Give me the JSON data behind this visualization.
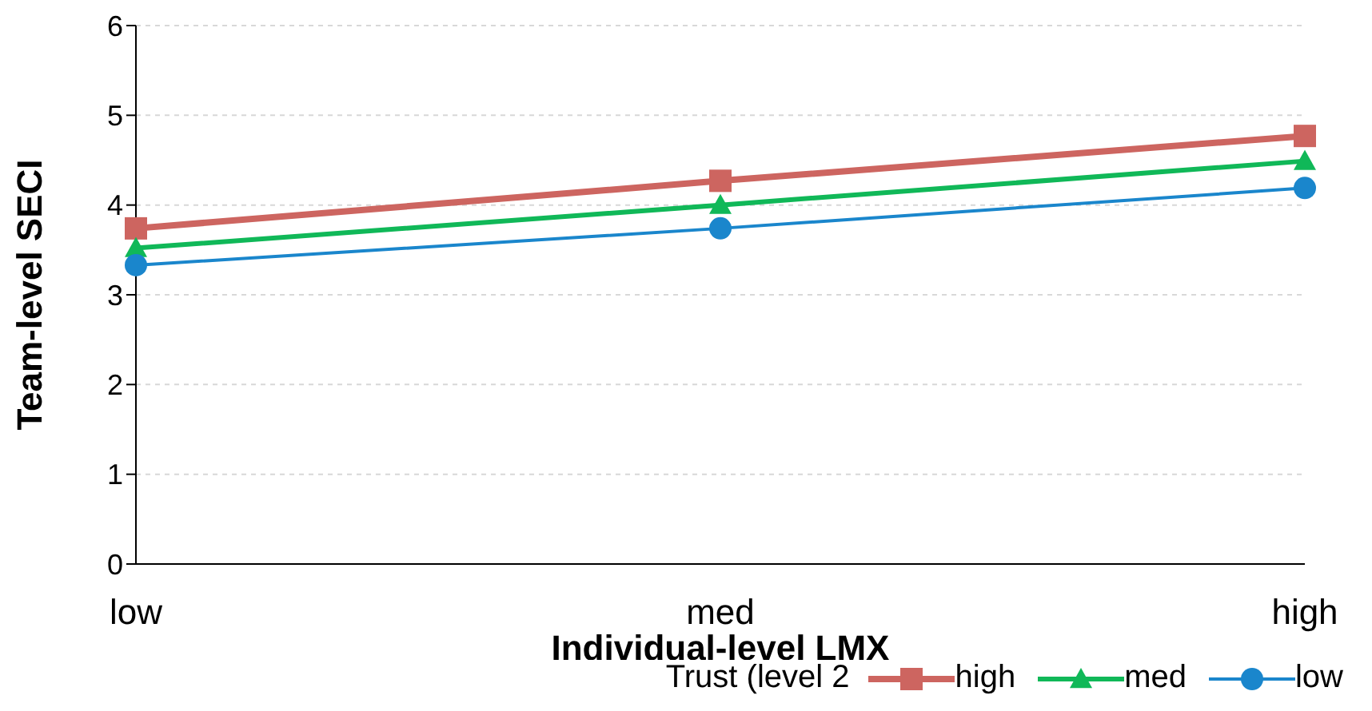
{
  "chart_data": {
    "type": "line",
    "xlabel": "Individual-level LMX",
    "ylabel": "Team-level SECI",
    "legend_title": "Trust (level 2",
    "categories": [
      "low",
      "med",
      "high"
    ],
    "series": [
      {
        "name": "high",
        "color": "#cd6560",
        "values": [
          3.74,
          4.27,
          4.77
        ],
        "marker": "square"
      },
      {
        "name": "med",
        "color": "#10b858",
        "values": [
          3.52,
          4.0,
          4.49
        ],
        "marker": "triangle"
      },
      {
        "name": "low",
        "color": "#1a86cc",
        "values": [
          3.33,
          3.74,
          4.19
        ],
        "marker": "circle"
      }
    ],
    "ylim": [
      0,
      6
    ],
    "yticks": [
      0,
      1,
      2,
      3,
      4,
      5,
      6
    ],
    "grid": "y",
    "legend": "bottom"
  }
}
